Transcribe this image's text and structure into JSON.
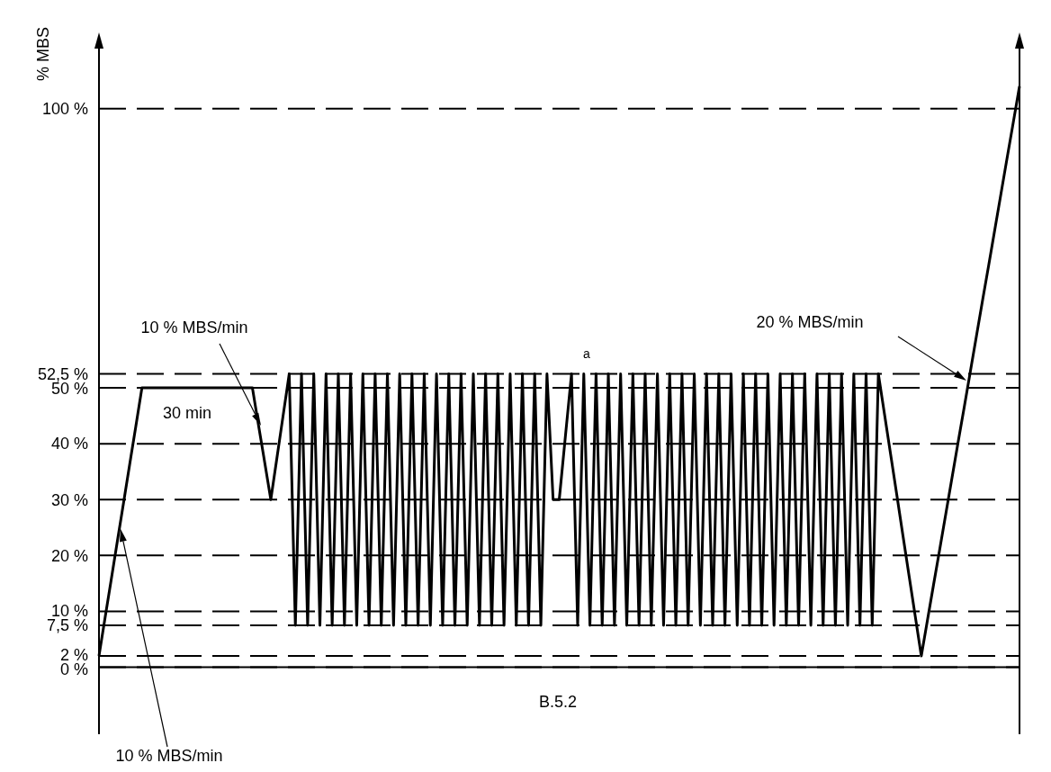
{
  "chart_data": {
    "type": "line",
    "ylabel": "% MBS",
    "categories": [
      null,
      null,
      null,
      null,
      null,
      null,
      null,
      null,
      null,
      null,
      null,
      null,
      null,
      null,
      null,
      null,
      null,
      null,
      null,
      null,
      null,
      null,
      null,
      null,
      null,
      null,
      null,
      null,
      null,
      null,
      null,
      null,
      null,
      null,
      null,
      null,
      null,
      null,
      null,
      null,
      null,
      null,
      null,
      null,
      null,
      null,
      null,
      null,
      null,
      null,
      null,
      null,
      null,
      null,
      null,
      null,
      null,
      null,
      null,
      null,
      null,
      null,
      null,
      null,
      null,
      null,
      null,
      null,
      null,
      null,
      null,
      null,
      null,
      null,
      null,
      null,
      null,
      null,
      null,
      null,
      null,
      null,
      null,
      null,
      null,
      null,
      null,
      null,
      null,
      null,
      null,
      null,
      null,
      null,
      null,
      null,
      null,
      null,
      null,
      null,
      null,
      null,
      null,
      null,
      null,
      null,
      null,
      null,
      null,
      null,
      null,
      null,
      null,
      null,
      null,
      null,
      null,
      null,
      null,
      null,
      null,
      null,
      null,
      null,
      null,
      null,
      null,
      null,
      null,
      null,
      null,
      null,
      null,
      null,
      null,
      null,
      null,
      null,
      null,
      null,
      null,
      null,
      null,
      null,
      null,
      null,
      null,
      null,
      null,
      null,
      null
    ],
    "series": [
      {
        "color": "#000000",
        "values": [
          2,
          8.9,
          15.7,
          22.6,
          29.4,
          36.3,
          43.1,
          50,
          50,
          50,
          50,
          50,
          50,
          50,
          50,
          50,
          50,
          50,
          50,
          50,
          50,
          50,
          50,
          50,
          50,
          50,
          43.3,
          36.7,
          30,
          37.5,
          45,
          52.5,
          7.5,
          52.5,
          7.5,
          52.5,
          7.5,
          52.5,
          7.5,
          52.5,
          7.5,
          52.5,
          7.5,
          52.5,
          7.5,
          52.5,
          7.5,
          52.5,
          7.5,
          52.5,
          7.5,
          52.5,
          7.5,
          52.5,
          7.5,
          52.5,
          7.5,
          52.5,
          7.5,
          52.5,
          7.5,
          52.5,
          7.5,
          52.5,
          7.5,
          52.5,
          7.5,
          52.5,
          7.5,
          52.5,
          7.5,
          52.5,
          7.5,
          52.5,
          30,
          30,
          41.3,
          52.5,
          7.5,
          52.5,
          7.5,
          52.5,
          7.5,
          52.5,
          7.5,
          52.5,
          7.5,
          52.5,
          7.5,
          52.5,
          7.5,
          52.5,
          7.5,
          52.5,
          7.5,
          52.5,
          7.5,
          52.5,
          7.5,
          52.5,
          7.5,
          52.5,
          7.5,
          52.5,
          7.5,
          52.5,
          7.5,
          52.5,
          7.5,
          52.5,
          7.5,
          52.5,
          7.5,
          52.5,
          7.5,
          52.5,
          7.5,
          52.5,
          7.5,
          52.5,
          7.5,
          52.5,
          7.5,
          52.5,
          7.5,
          52.5,
          7.5,
          52.5,
          45.3,
          38.1,
          30.9,
          23.6,
          16.4,
          9.2,
          2,
          8.4,
          14.8,
          21.1,
          27.5,
          33.9,
          40.3,
          46.6,
          53,
          59.4,
          65.8,
          72.1,
          78.5,
          84.9,
          91.3,
          97.6,
          104
        ]
      }
    ],
    "ylim": [
      -12,
      113
    ],
    "yticks": [
      {
        "value": 0,
        "label": "0 %"
      },
      {
        "value": 2,
        "label": "2 %"
      },
      {
        "value": 7.5,
        "label": "7,5 %"
      },
      {
        "value": 10,
        "label": "10 %"
      },
      {
        "value": 20,
        "label": "20 %"
      },
      {
        "value": 30,
        "label": "30 %"
      },
      {
        "value": 40,
        "label": "40 %"
      },
      {
        "value": 50,
        "label": "50 %"
      },
      {
        "value": 52.5,
        "label": "52,5 %"
      },
      {
        "value": 100,
        "label": "100 %"
      }
    ],
    "grid": "y",
    "tick_labels": "y",
    "marker": "none",
    "line_style": "solid",
    "legend": false,
    "ref_lines": [
      {
        "axis": "y",
        "value": 0,
        "label": null,
        "line_style": "solid",
        "color": "#000000"
      }
    ],
    "annotations": [
      "10 % MBS/min",
      "30 min",
      "20 % MBS/min",
      "10 % MBS/min",
      "a",
      "B.5.2"
    ]
  }
}
